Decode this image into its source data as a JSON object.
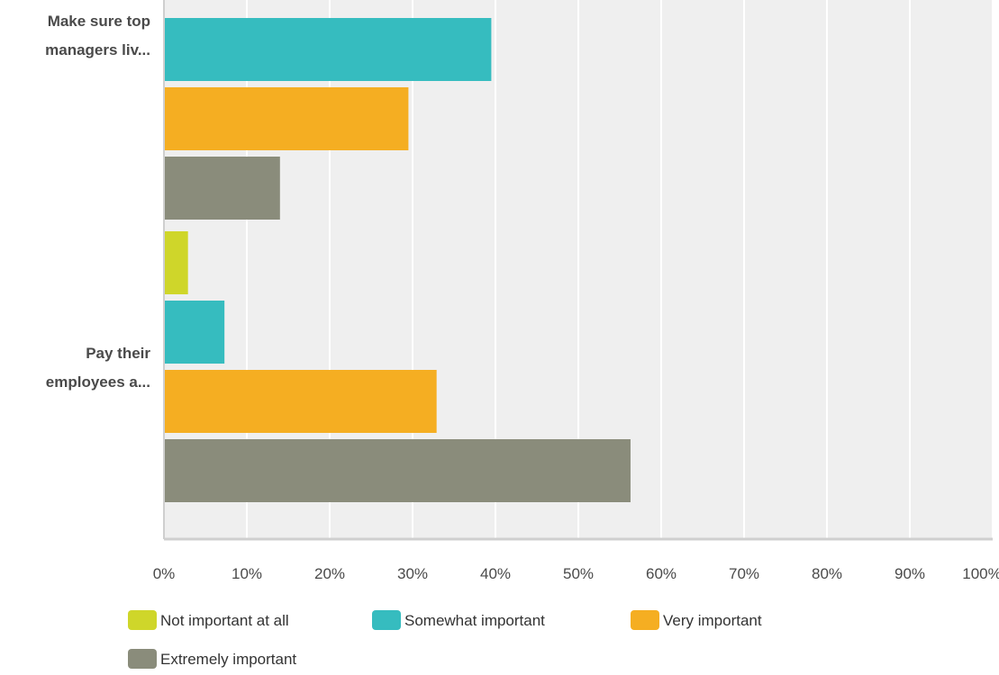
{
  "chart_data": {
    "type": "bar",
    "orientation": "horizontal",
    "xlim": [
      0,
      100
    ],
    "x_tick_labels": [
      "0%",
      "10%",
      "20%",
      "30%",
      "40%",
      "50%",
      "60%",
      "70%",
      "80%",
      "90%",
      "100%"
    ],
    "grid": true,
    "legend_position": "bottom",
    "categories": [
      {
        "lines": [
          "Make sure top",
          "managers liv..."
        ]
      },
      {
        "lines": [
          "Pay their",
          "employees a..."
        ]
      }
    ],
    "series": [
      {
        "name": "Not important at all",
        "color": "#cfd62a",
        "values": [
          null,
          2.9
        ]
      },
      {
        "name": "Somewhat important",
        "color": "#36bcbf",
        "values": [
          39.5,
          7.3
        ]
      },
      {
        "name": "Very important",
        "color": "#f5ae22",
        "values": [
          29.5,
          32.9
        ]
      },
      {
        "name": "Extremely important",
        "color": "#8a8c7b",
        "values": [
          14.0,
          56.3
        ]
      }
    ]
  },
  "colors": {
    "plot_background": "#efefef",
    "gridline": "#ffffff",
    "axis": "#cfcfcf"
  }
}
